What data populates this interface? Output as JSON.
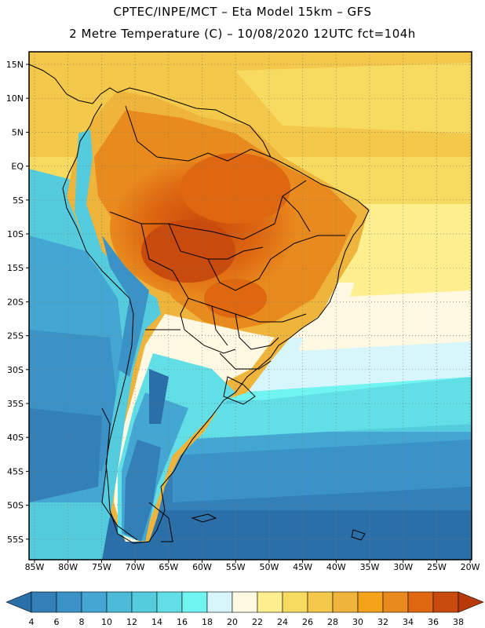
{
  "header": {
    "line1": "CPTEC/INPE/MCT –  Eta Model 15km – GFS",
    "line2": "2 Metre Temperature (C) – 10/08/2020 12UTC fct=104h"
  },
  "map": {
    "lat_labels": [
      "15N",
      "10N",
      "5N",
      "EQ",
      "5S",
      "10S",
      "15S",
      "20S",
      "25S",
      "30S",
      "35S",
      "40S",
      "45S",
      "50S",
      "55S"
    ],
    "lon_labels": [
      "85W",
      "80W",
      "75W",
      "70W",
      "65W",
      "60W",
      "55W",
      "50W",
      "45W",
      "40W",
      "35W",
      "30W",
      "25W",
      "20W"
    ]
  },
  "colorbar": {
    "values": [
      "4",
      "6",
      "8",
      "10",
      "12",
      "14",
      "16",
      "18",
      "20",
      "22",
      "24",
      "26",
      "28",
      "30",
      "32",
      "34",
      "36",
      "38"
    ],
    "colors": [
      "#2b6fa8",
      "#3380b8",
      "#3a92c6",
      "#44a6d2",
      "#4cbad8",
      "#55ccdd",
      "#62dfe6",
      "#6ff4f2",
      "#d7f6fb",
      "#fff8e2",
      "#ffef8f",
      "#f7da60",
      "#f4c84a",
      "#efb43b",
      "#f3a21a",
      "#e98a1e",
      "#de6710",
      "#c84a0c",
      "#b73a08"
    ]
  }
}
